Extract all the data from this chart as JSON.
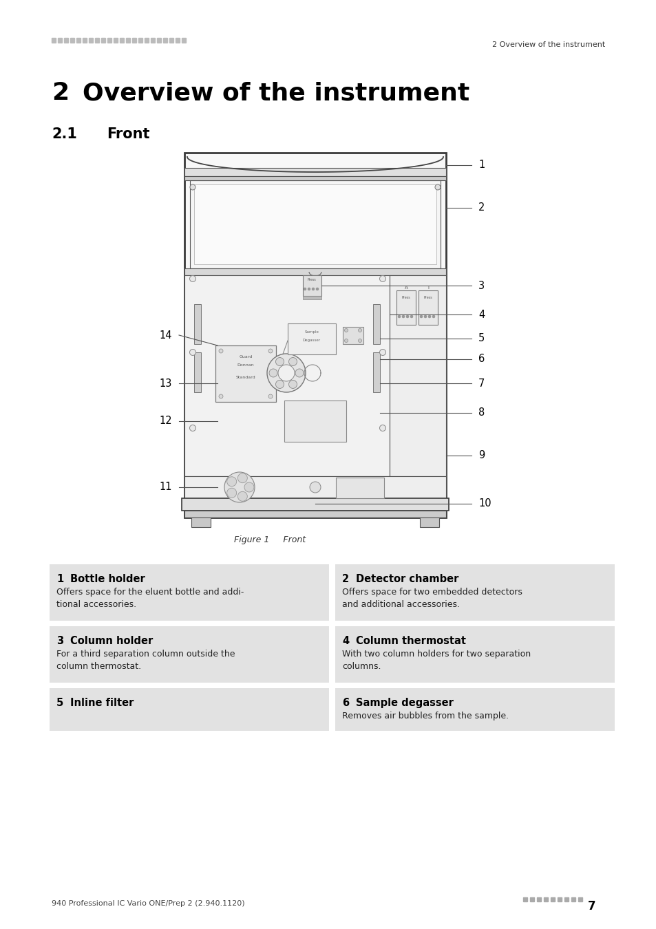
{
  "page_bg": "#ffffff",
  "header_dots_color": "#bbbbbb",
  "header_right_text": "2 Overview of the instrument",
  "chapter_number": "2",
  "chapter_title": "Overview of the instrument",
  "section_number": "2.1",
  "section_title": "Front",
  "figure_caption": "Figure 1     Front",
  "footer_left": "940 Professional IC Vario ONE/Prep 2 (2.940.1120)",
  "table_bg": "#e2e2e2",
  "table_items": [
    {
      "num": "1",
      "title": "Bottle holder",
      "desc": "Offers space for the eluent bottle and addi-\ntional accessories."
    },
    {
      "num": "2",
      "title": "Detector chamber",
      "desc": "Offers space for two embedded detectors\nand additional accessories."
    },
    {
      "num": "3",
      "title": "Column holder",
      "desc": "For a third separation column outside the\ncolumn thermostat."
    },
    {
      "num": "4",
      "title": "Column thermostat",
      "desc": "With two column holders for two separation\ncolumns."
    },
    {
      "num": "5",
      "title": "Inline filter",
      "desc": ""
    },
    {
      "num": "6",
      "title": "Sample degasser",
      "desc": "Removes air bubbles from the sample."
    }
  ]
}
